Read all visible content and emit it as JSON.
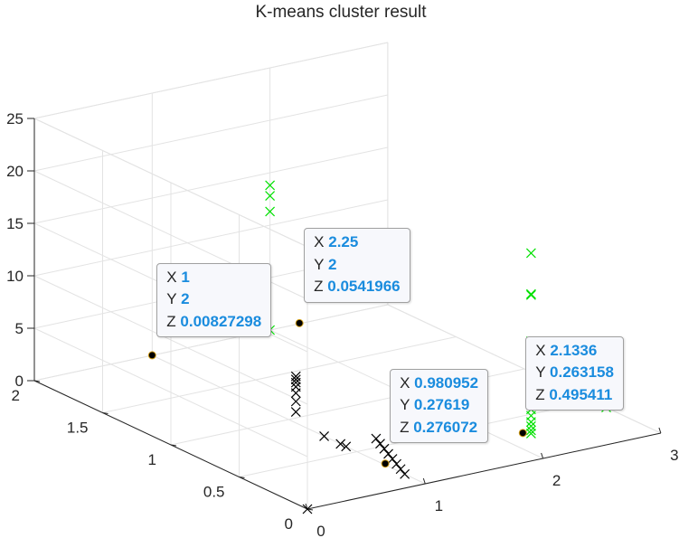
{
  "chart_data": {
    "type": "scatter",
    "title": "K-means cluster result",
    "xlim": [
      0,
      3
    ],
    "ylim": [
      0,
      2
    ],
    "zlim": [
      0,
      25
    ],
    "x_ticks": [
      "0",
      "1",
      "2",
      "3"
    ],
    "y_ticks": [
      "0",
      "0.5",
      "1",
      "1.5",
      "2"
    ],
    "z_ticks": [
      "0",
      "5",
      "10",
      "15",
      "20",
      "25"
    ],
    "grid": true,
    "series": [
      {
        "color": "#000000",
        "marker": "x",
        "points": [
          [
            0.98,
            0.93,
            1.2
          ],
          [
            0.98,
            0.93,
            2.2
          ],
          [
            0.98,
            0.93,
            3.0
          ],
          [
            0.98,
            0.93,
            3.6
          ],
          [
            0.98,
            0.93,
            4.0
          ],
          [
            0.98,
            0.93,
            4.3
          ],
          [
            0.98,
            0.93,
            4.6
          ],
          [
            1.0,
            0.58,
            0.0
          ],
          [
            1.0,
            0.62,
            0.0
          ],
          [
            1.0,
            0.74,
            0.0
          ],
          [
            1.0,
            0.15,
            0.0
          ],
          [
            1.0,
            0.18,
            0.3
          ],
          [
            1.0,
            0.21,
            0.6
          ],
          [
            1.0,
            0.24,
            0.9
          ],
          [
            1.0,
            0.27,
            1.2
          ],
          [
            1.0,
            0.3,
            1.5
          ],
          [
            1.0,
            0.33,
            1.8
          ],
          [
            1.0,
            0.36,
            2.1
          ],
          [
            0.0,
            0.0,
            0.0
          ]
        ]
      },
      {
        "color": "#00e000",
        "marker": "x",
        "points": [
          [
            2.0,
            2.0,
            0.0
          ],
          [
            2.0,
            2.0,
            12.8
          ],
          [
            2.0,
            2.0,
            11.3
          ],
          [
            2.0,
            2.0,
            13.8
          ],
          [
            2.2,
            0.26,
            17.5
          ],
          [
            2.2,
            0.26,
            13.5
          ],
          [
            2.2,
            0.26,
            13.6
          ],
          [
            2.2,
            0.26,
            9.1
          ],
          [
            2.2,
            0.26,
            7.4
          ],
          [
            2.2,
            0.26,
            3.2
          ],
          [
            2.2,
            0.26,
            2.6
          ],
          [
            2.2,
            0.26,
            2.0
          ],
          [
            2.2,
            0.26,
            1.4
          ],
          [
            2.2,
            0.26,
            1.0
          ],
          [
            2.2,
            0.26,
            0.6
          ],
          [
            2.2,
            0.26,
            0.3
          ],
          [
            3.0,
            0.4,
            0.0
          ],
          [
            3.0,
            0.4,
            0.4
          ],
          [
            3.0,
            0.4,
            0.8
          ],
          [
            3.0,
            0.4,
            1.3
          ],
          [
            3.0,
            0.4,
            2.0
          ],
          [
            3.0,
            0.4,
            3.4
          ]
        ]
      },
      {
        "color": "#000000",
        "marker": "o",
        "points": [
          [
            1,
            2,
            0.00827298
          ],
          [
            2.25,
            2,
            0.0541966
          ],
          [
            0.980952,
            0.27619,
            0.276072
          ],
          [
            2.1336,
            0.263158,
            0.495411
          ]
        ]
      }
    ],
    "datatips": [
      {
        "x_label": "X",
        "x": "1",
        "y_label": "Y",
        "y": "2",
        "z_label": "Z",
        "z": "0.00827298"
      },
      {
        "x_label": "X",
        "x": "2.25",
        "y_label": "Y",
        "y": "2",
        "z_label": "Z",
        "z": "0.0541966"
      },
      {
        "x_label": "X",
        "x": "0.980952",
        "y_label": "Y",
        "y": "0.27619",
        "z_label": "Z",
        "z": "0.276072"
      },
      {
        "x_label": "X",
        "x": "2.1336",
        "y_label": "Y",
        "y": "0.263158",
        "z_label": "Z",
        "z": "0.495411"
      }
    ]
  }
}
